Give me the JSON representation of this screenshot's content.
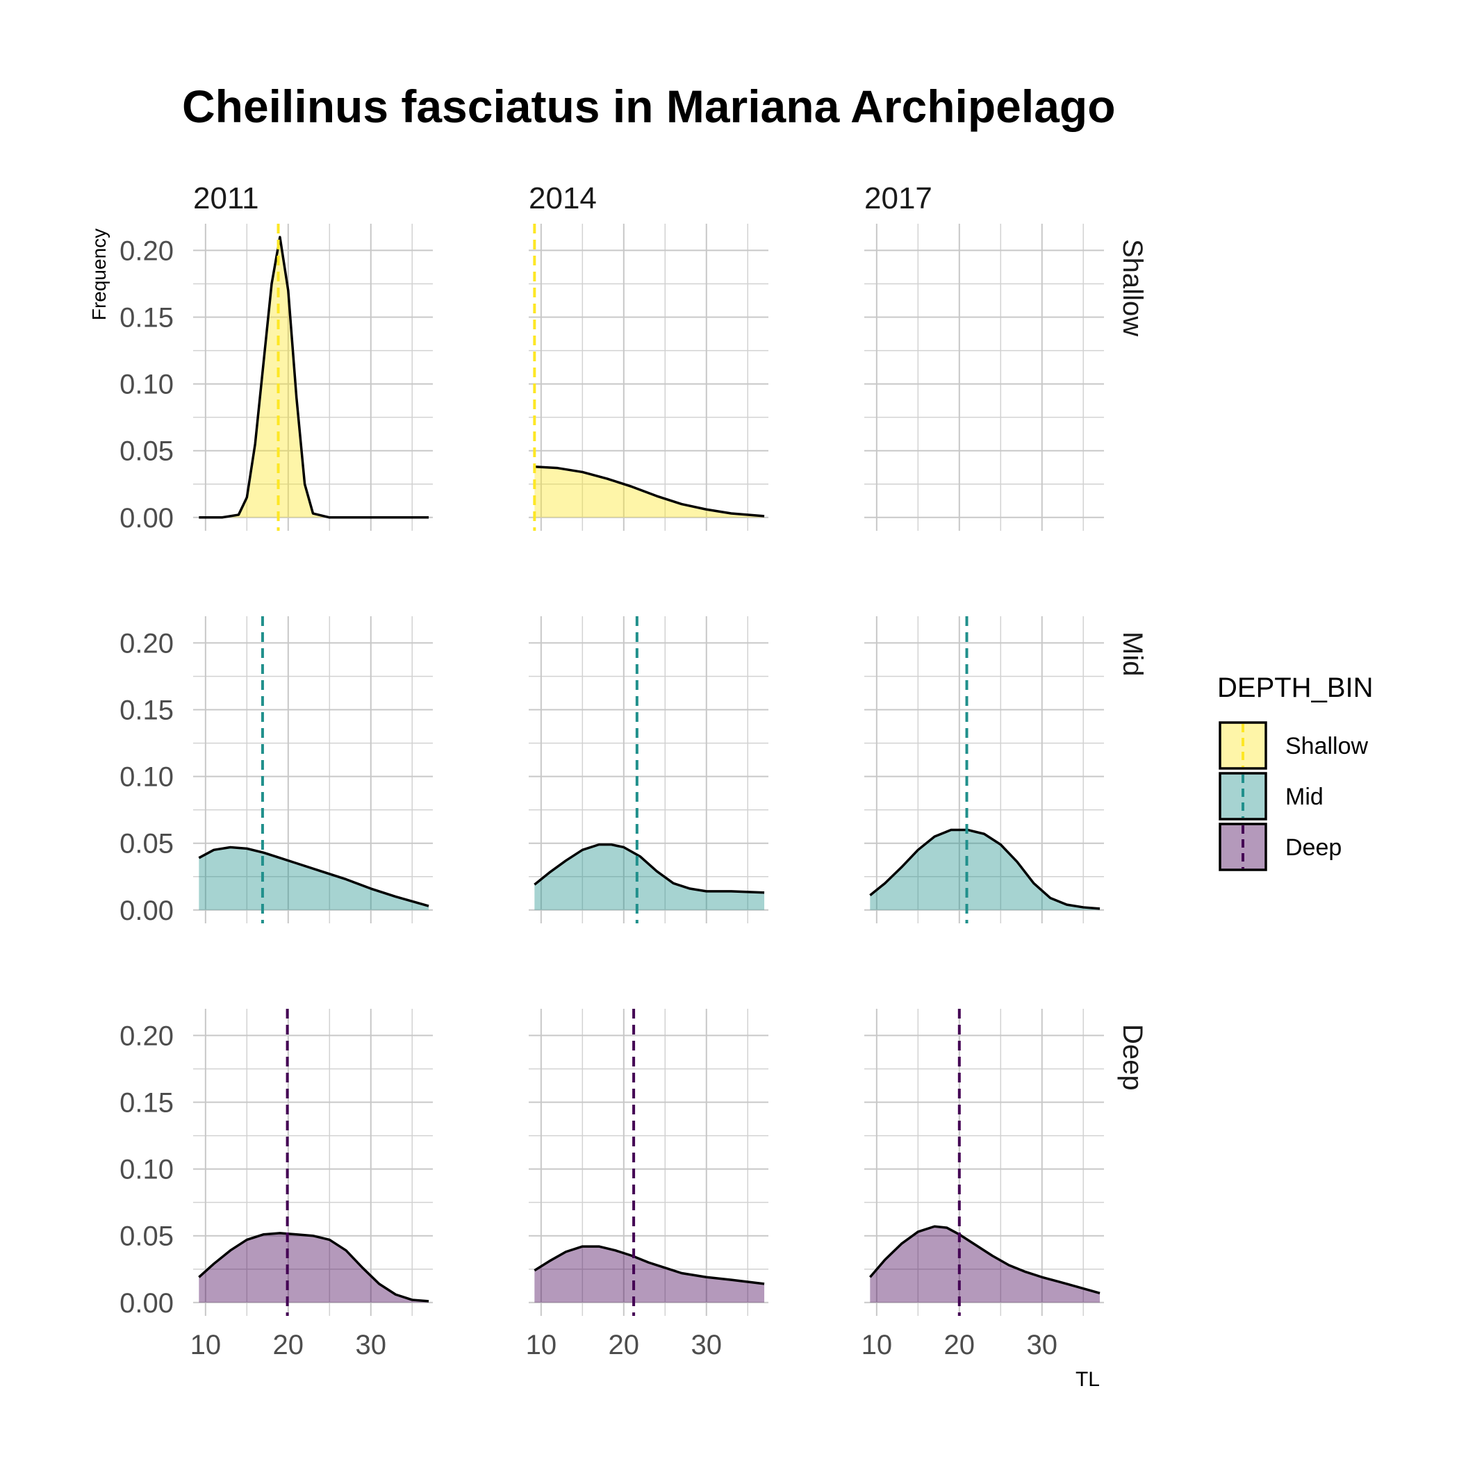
{
  "chart_data": {
    "type": "area",
    "title": "Cheilinus fasciatus in Mariana Archipelago",
    "xlabel": "TL",
    "ylabel": "Frequency",
    "xlim": [
      8.5,
      37.5
    ],
    "ylim": [
      -0.01,
      0.22
    ],
    "x_ticks": [
      10,
      20,
      30
    ],
    "y_ticks": [
      0.0,
      0.05,
      0.1,
      0.15,
      0.2
    ],
    "y_tick_labels": [
      "0.00",
      "0.05",
      "0.10",
      "0.15",
      "0.20"
    ],
    "grid": true,
    "columns": [
      "2011",
      "2014",
      "2017"
    ],
    "rows": [
      "Shallow",
      "Mid",
      "Deep"
    ],
    "legend": {
      "title": "DEPTH_BIN",
      "position": "right",
      "entries": [
        {
          "label": "Shallow",
          "fill": "#fde725",
          "line": "#fde725"
        },
        {
          "label": "Mid",
          "fill": "#21908c",
          "line": "#21908c"
        },
        {
          "label": "Deep",
          "fill": "#440154",
          "line": "#440154"
        }
      ]
    },
    "panels": [
      {
        "row": "Shallow",
        "col": "2011",
        "mean": 18.8,
        "x_start": 9.2,
        "x": [
          9.2,
          12,
          14,
          15,
          16,
          17,
          18,
          19,
          20,
          21,
          22,
          23,
          25,
          30,
          37
        ],
        "y": [
          0,
          0,
          0.002,
          0.015,
          0.055,
          0.115,
          0.175,
          0.21,
          0.17,
          0.09,
          0.025,
          0.003,
          0,
          0,
          0
        ]
      },
      {
        "row": "Shallow",
        "col": "2014",
        "mean": 9.2,
        "x_start": 9.2,
        "x": [
          9.2,
          12,
          15,
          18,
          21,
          24,
          27,
          30,
          33,
          37
        ],
        "y": [
          0.038,
          0.037,
          0.034,
          0.029,
          0.023,
          0.016,
          0.01,
          0.006,
          0.003,
          0.001
        ]
      },
      {
        "row": "Shallow",
        "col": "2017",
        "mean": null,
        "x": [],
        "y": []
      },
      {
        "row": "Mid",
        "col": "2011",
        "mean": 16.9,
        "x_start": 9.2,
        "x": [
          9.2,
          11,
          13,
          15,
          17,
          19,
          21,
          24,
          27,
          30,
          33,
          37
        ],
        "y": [
          0.039,
          0.045,
          0.047,
          0.046,
          0.043,
          0.039,
          0.035,
          0.029,
          0.023,
          0.016,
          0.01,
          0.003
        ]
      },
      {
        "row": "Mid",
        "col": "2014",
        "mean": 21.6,
        "x_start": 9.2,
        "x": [
          9.2,
          11,
          13,
          15,
          17,
          18.5,
          20,
          22,
          24,
          26,
          28,
          30,
          33,
          37
        ],
        "y": [
          0.019,
          0.028,
          0.037,
          0.045,
          0.049,
          0.049,
          0.047,
          0.04,
          0.029,
          0.02,
          0.016,
          0.014,
          0.014,
          0.013
        ]
      },
      {
        "row": "Mid",
        "col": "2017",
        "mean": 20.9,
        "x_start": 9.2,
        "x": [
          9.2,
          11,
          13,
          15,
          17,
          19,
          21,
          23,
          25,
          27,
          29,
          31,
          33,
          35,
          37
        ],
        "y": [
          0.011,
          0.02,
          0.032,
          0.045,
          0.055,
          0.06,
          0.06,
          0.057,
          0.049,
          0.036,
          0.02,
          0.009,
          0.004,
          0.002,
          0.001
        ]
      },
      {
        "row": "Deep",
        "col": "2011",
        "mean": 19.9,
        "x_start": 9.2,
        "x": [
          9.2,
          11,
          13,
          15,
          17,
          19,
          21,
          23,
          25,
          27,
          29,
          31,
          33,
          35,
          37
        ],
        "y": [
          0.019,
          0.029,
          0.039,
          0.047,
          0.051,
          0.052,
          0.051,
          0.05,
          0.047,
          0.039,
          0.026,
          0.014,
          0.006,
          0.002,
          0.001
        ]
      },
      {
        "row": "Deep",
        "col": "2014",
        "mean": 21.2,
        "x_start": 9.2,
        "x": [
          9.2,
          11,
          13,
          15,
          17,
          19,
          21,
          23,
          25,
          27,
          30,
          33,
          37
        ],
        "y": [
          0.024,
          0.031,
          0.038,
          0.042,
          0.042,
          0.039,
          0.035,
          0.03,
          0.026,
          0.022,
          0.019,
          0.017,
          0.014
        ]
      },
      {
        "row": "Deep",
        "col": "2017",
        "mean": 20.0,
        "x_start": 9.2,
        "x": [
          9.2,
          11,
          13,
          15,
          17,
          18.5,
          20,
          22,
          24,
          26,
          28,
          30,
          33,
          37
        ],
        "y": [
          0.019,
          0.032,
          0.044,
          0.053,
          0.057,
          0.056,
          0.051,
          0.043,
          0.035,
          0.028,
          0.023,
          0.019,
          0.014,
          0.007
        ]
      }
    ]
  }
}
